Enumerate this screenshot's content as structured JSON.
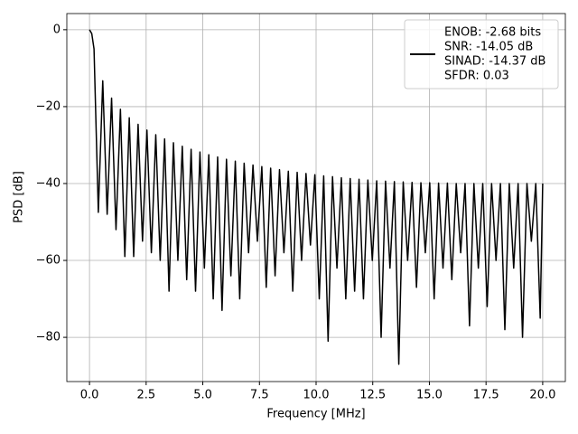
{
  "chart_data": {
    "type": "line",
    "xlabel": "Frequency [MHz]",
    "ylabel": "PSD [dB]",
    "xlim": [
      -1,
      21
    ],
    "ylim": [
      -91.5,
      4.2
    ],
    "xticks": [
      {
        "value": 0,
        "label": "0.0"
      },
      {
        "value": 2.5,
        "label": "2.5"
      },
      {
        "value": 5,
        "label": "5.0"
      },
      {
        "value": 7.5,
        "label": "7.5"
      },
      {
        "value": 10,
        "label": "10.0"
      },
      {
        "value": 12.5,
        "label": "12.5"
      },
      {
        "value": 15,
        "label": "15.0"
      },
      {
        "value": 17.5,
        "label": "17.5"
      },
      {
        "value": 20,
        "label": "20.0"
      }
    ],
    "yticks": [
      {
        "value": -80,
        "label": "−80"
      },
      {
        "value": -60,
        "label": "−60"
      },
      {
        "value": -40,
        "label": "−40"
      },
      {
        "value": -20,
        "label": "−20"
      },
      0
    ],
    "grid": true,
    "legend": "upper right",
    "x": [
      0,
      0.1,
      0.2,
      0.39,
      0.585,
      0.78,
      0.975,
      1.17,
      1.365,
      1.56,
      1.755,
      1.95,
      2.145,
      2.34,
      2.535,
      2.73,
      2.925,
      3.12,
      3.315,
      3.51,
      3.705,
      3.9,
      4.095,
      4.29,
      4.485,
      4.68,
      4.875,
      5.07,
      5.265,
      5.46,
      5.655,
      5.85,
      6.045,
      6.24,
      6.435,
      6.63,
      6.825,
      7.02,
      7.215,
      7.41,
      7.605,
      7.8,
      7.995,
      8.19,
      8.385,
      8.58,
      8.775,
      8.97,
      9.165,
      9.36,
      9.555,
      9.75,
      9.945,
      10.14,
      10.335,
      10.53,
      10.725,
      10.92,
      11.115,
      11.31,
      11.505,
      11.7,
      11.895,
      12.09,
      12.285,
      12.48,
      12.675,
      12.87,
      13.065,
      13.26,
      13.455,
      13.65,
      13.845,
      14.04,
      14.235,
      14.43,
      14.625,
      14.82,
      15.015,
      15.21,
      15.405,
      15.6,
      15.795,
      15.99,
      16.185,
      16.38,
      16.575,
      16.77,
      16.965,
      17.16,
      17.355,
      17.55,
      17.745,
      17.94,
      18.135,
      18.33,
      18.525,
      18.72,
      18.915,
      19.11,
      19.305,
      19.5,
      19.695,
      19.89,
      20
    ],
    "series": [
      {
        "name": [
          "ENOB: -2.68 bits",
          "SNR: -14.05 dB",
          "SINAD: -14.37 dB",
          "SFDR: 0.03"
        ],
        "color": "#000000",
        "values": [
          0,
          -1,
          -5,
          -47.5,
          -13.3,
          -48,
          -17.8,
          -52,
          -20.7,
          -59,
          -22.9,
          -59,
          -24.6,
          -55,
          -26.1,
          -58,
          -27.3,
          -60,
          -28.4,
          -68,
          -29.4,
          -60,
          -30.3,
          -65,
          -31.1,
          -68,
          -31.8,
          -62,
          -32.5,
          -70,
          -33.1,
          -73,
          -33.7,
          -64,
          -34.2,
          -70,
          -34.7,
          -58,
          -35.2,
          -55,
          -35.6,
          -67,
          -36.0,
          -64,
          -36.4,
          -58,
          -36.8,
          -68,
          -37.1,
          -60,
          -37.4,
          -56,
          -37.7,
          -70,
          -38.0,
          -81,
          -38.2,
          -62,
          -38.5,
          -70,
          -38.7,
          -68,
          -38.9,
          -70,
          -39.1,
          -60,
          -39.3,
          -80,
          -39.4,
          -62,
          -39.5,
          -87,
          -39.6,
          -60,
          -39.7,
          -67,
          -39.8,
          -58,
          -39.8,
          -70,
          -39.9,
          -62,
          -39.9,
          -65,
          -40,
          -58,
          -40,
          -77,
          -40,
          -62,
          -40,
          -72,
          -40,
          -60,
          -40,
          -78,
          -40,
          -62,
          -40,
          -80,
          -40,
          -55,
          -40,
          -75,
          -40
        ]
      }
    ]
  }
}
